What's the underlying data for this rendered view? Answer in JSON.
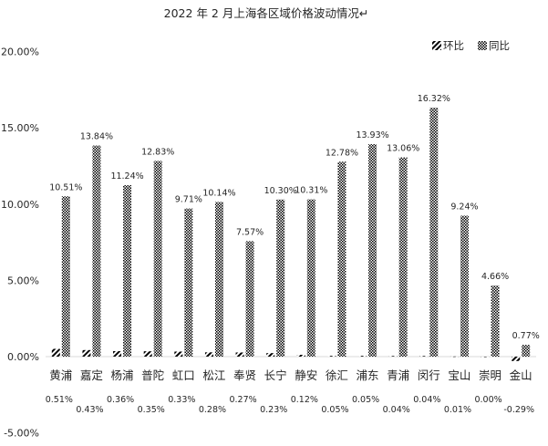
{
  "chart_data": {
    "type": "bar",
    "title": "2022 年 2 月上海各区域价格波动情况↵",
    "categories": [
      "黄浦",
      "嘉定",
      "杨浦",
      "普陀",
      "虹口",
      "松江",
      "奉贤",
      "长宁",
      "静安",
      "徐汇",
      "浦东",
      "青浦",
      "闵行",
      "宝山",
      "崇明",
      "金山"
    ],
    "series": [
      {
        "name": "环比",
        "values": [
          0.51,
          0.43,
          0.36,
          0.35,
          0.33,
          0.28,
          0.27,
          0.23,
          0.12,
          0.05,
          0.05,
          0.04,
          0.04,
          0.01,
          0.0,
          -0.29
        ],
        "labels": [
          "0.51%",
          "0.43%",
          "0.36%",
          "0.35%",
          "0.33%",
          "0.28%",
          "0.27%",
          "0.23%",
          "0.12%",
          "0.05%",
          "0.05%",
          "0.04%",
          "0.04%",
          "0.01%",
          "0.00%",
          "-0.29%"
        ],
        "pattern": "diagonal-hatch"
      },
      {
        "name": "同比",
        "values": [
          10.51,
          13.84,
          11.24,
          12.83,
          9.71,
          10.14,
          7.57,
          10.3,
          10.31,
          12.78,
          13.93,
          13.06,
          16.32,
          9.24,
          4.66,
          0.77
        ],
        "labels": [
          "10.51%",
          "13.84%",
          "11.24%",
          "12.83%",
          "9.71%",
          "10.14%",
          "7.57%",
          "10.30%",
          "10.31%",
          "12.78%",
          "13.93%",
          "13.06%",
          "16.32%",
          "9.24%",
          "4.66%",
          "0.77%"
        ],
        "pattern": "checker"
      }
    ],
    "ylim": [
      -5,
      20
    ],
    "yticks": [
      "-5.00%",
      "0.00%",
      "5.00%",
      "10.00%",
      "15.00%",
      "20.00%"
    ],
    "ytick_values": [
      -5,
      0,
      5,
      10,
      15,
      20
    ],
    "grid": false,
    "legend": "top-right",
    "colors": {
      "bar_ink": "#000000",
      "text": "#262626",
      "axis": "#d9d9d9"
    }
  }
}
